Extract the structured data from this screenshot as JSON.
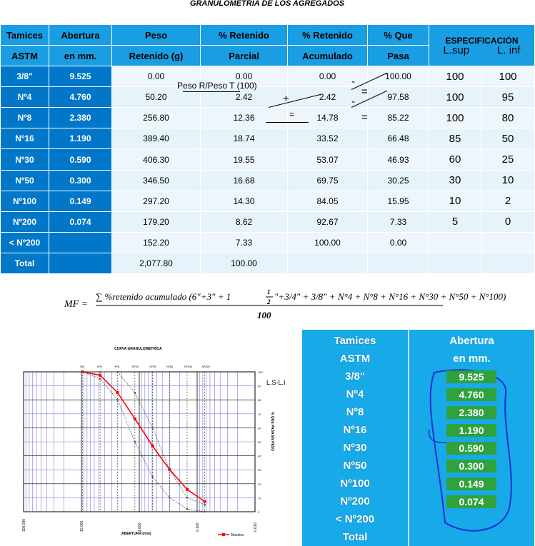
{
  "title": "GRANULOMETRIA DE LOS AGREGADOS",
  "table": {
    "header1": [
      "Tamices",
      "Abertura",
      "Peso",
      "% Retenido",
      "% Retenido",
      "% Que"
    ],
    "header2": [
      "ASTM",
      "en mm.",
      "Retenido (g)",
      "Parcial",
      "Acumulado",
      "Pasa"
    ],
    "spec_title": "ESPECIFICACIÓN",
    "spec_sup": "L.sup",
    "spec_inf": "L. inf",
    "rows": [
      {
        "tamiz": "3/8\"",
        "abertura": "9.525",
        "peso": "0.00",
        "parcial": "0.00",
        "acumulado": "0.00",
        "pasa": "100.00",
        "lsup": "100",
        "linf": "100"
      },
      {
        "tamiz": "Nº4",
        "abertura": "4.760",
        "peso": "50.20",
        "parcial": "2.42",
        "acumulado": "2.42",
        "pasa": "97.58",
        "lsup": "100",
        "linf": "95"
      },
      {
        "tamiz": "Nº8",
        "abertura": "2.380",
        "peso": "256.80",
        "parcial": "12.36",
        "acumulado": "14.78",
        "pasa": "85.22",
        "lsup": "100",
        "linf": "80"
      },
      {
        "tamiz": "Nº16",
        "abertura": "1.190",
        "peso": "389.40",
        "parcial": "18.74",
        "acumulado": "33.52",
        "pasa": "66.48",
        "lsup": "85",
        "linf": "50"
      },
      {
        "tamiz": "Nº30",
        "abertura": "0.590",
        "peso": "406.30",
        "parcial": "19.55",
        "acumulado": "53.07",
        "pasa": "46.93",
        "lsup": "60",
        "linf": "25"
      },
      {
        "tamiz": "Nº50",
        "abertura": "0.300",
        "peso": "346.50",
        "parcial": "16.68",
        "acumulado": "69.75",
        "pasa": "30.25",
        "lsup": "30",
        "linf": "10"
      },
      {
        "tamiz": "Nº100",
        "abertura": "0.149",
        "peso": "297.20",
        "parcial": "14.30",
        "acumulado": "84.05",
        "pasa": "15.95",
        "lsup": "10",
        "linf": "2"
      },
      {
        "tamiz": "Nº200",
        "abertura": "0.074",
        "peso": "179.20",
        "parcial": "8.62",
        "acumulado": "92.67",
        "pasa": "7.33",
        "lsup": "5",
        "linf": "0"
      },
      {
        "tamiz": "< Nº200",
        "abertura": "",
        "peso": "152.20",
        "parcial": "7.33",
        "acumulado": "100.00",
        "pasa": "0.00",
        "lsup": "",
        "linf": ""
      },
      {
        "tamiz": "Total",
        "abertura": "",
        "peso": "2,077.80",
        "parcial": "100.00",
        "acumulado": "",
        "pasa": "",
        "lsup": "",
        "linf": ""
      }
    ]
  },
  "annotations": {
    "peso_ratio": "Peso R/Peso T (100)",
    "plus": "+",
    "equals": "=",
    "minus": "-"
  },
  "formula": {
    "lhs": "MF =",
    "numerator": "∑ %retenido acumulado (6\"+3\" + 1",
    "frac_num": "1",
    "frac_den": "2",
    "numerator_rest": "\"+3/4\" + 3/8\" + N°4 + N°8 + N°16 + N°30 + N°50 + N°100)",
    "denominator": "100"
  },
  "chart_data": {
    "type": "line",
    "title": "CURVA GRANULOMETRICA",
    "xlabel": "ABERTURA (mm)",
    "ylabel": "% QUE PASA EN PESO",
    "x_scale": "log",
    "x_reversed": true,
    "xlim": [
      0.01,
      100
    ],
    "ylim": [
      0,
      100
    ],
    "x_tick_labels": [
      "100.000",
      "10.000",
      "1.000",
      "0.100",
      "0.010"
    ],
    "x_ticks": [
      100,
      10,
      1,
      0.1,
      0.01
    ],
    "y_tick_labels": [
      "0",
      "10",
      "20",
      "30",
      "40",
      "50",
      "60",
      "70",
      "80",
      "90",
      "100"
    ],
    "top_labels": [
      "3/8\"",
      "Nº4",
      "Nº8",
      "Nº16",
      "Nº30",
      "Nº50",
      "Nº100",
      "Nº200"
    ],
    "top_positions": [
      9.525,
      4.76,
      2.38,
      1.19,
      0.59,
      0.3,
      0.149,
      0.074
    ],
    "side_label": "L.S-L.I",
    "legend": "Muestra",
    "legend_position": "bottom-right",
    "grid": true,
    "series": [
      {
        "name": "Muestra",
        "color": "#ff0000",
        "x": [
          9.525,
          4.76,
          2.38,
          1.19,
          0.59,
          0.3,
          0.149,
          0.074
        ],
        "y": [
          100,
          97.58,
          85.22,
          66.48,
          46.93,
          30.25,
          15.95,
          7.33
        ]
      },
      {
        "x": [
          9.525,
          4.76,
          2.38,
          1.19,
          0.59,
          0.3,
          0.149,
          0.074
        ],
        "y": [
          100,
          100,
          100,
          85,
          60,
          30,
          10,
          5
        ],
        "color": "#555555"
      },
      {
        "x": [
          9.525,
          4.76,
          2.38,
          1.19,
          0.59,
          0.3,
          0.149,
          0.074
        ],
        "y": [
          100,
          95,
          80,
          50,
          25,
          10,
          2,
          0
        ],
        "color": "#555555"
      }
    ]
  },
  "photo": {
    "rows": [
      {
        "tamiz": "Tamices",
        "abertura": "Abertura",
        "hl": false
      },
      {
        "tamiz": "ASTM",
        "abertura": "en mm.",
        "hl": false
      },
      {
        "tamiz": "3/8\"",
        "abertura": "9.525",
        "hl": true
      },
      {
        "tamiz": "Nº4",
        "abertura": "4.760",
        "hl": true
      },
      {
        "tamiz": "Nº8",
        "abertura": "2.380",
        "hl": true
      },
      {
        "tamiz": "Nº16",
        "abertura": "1.190",
        "hl": true
      },
      {
        "tamiz": "Nº30",
        "abertura": "0.590",
        "hl": true
      },
      {
        "tamiz": "Nº50",
        "abertura": "0.300",
        "hl": true
      },
      {
        "tamiz": "Nº100",
        "abertura": "0.149",
        "hl": true
      },
      {
        "tamiz": "Nº200",
        "abertura": "0.074",
        "hl": true
      },
      {
        "tamiz": "< Nº200",
        "abertura": "",
        "hl": false
      },
      {
        "tamiz": "Total",
        "abertura": "",
        "hl": false
      }
    ]
  }
}
